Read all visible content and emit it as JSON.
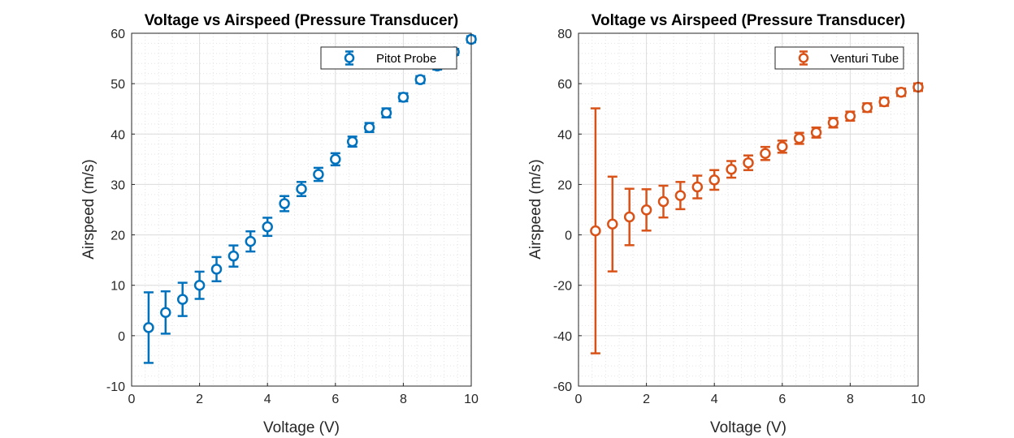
{
  "chart_data": [
    {
      "type": "scatter",
      "title": "Voltage vs Airspeed (Pressure Transducer)",
      "xlabel": "Voltage (V)",
      "ylabel": "Airspeed (m/s)",
      "xlim": [
        0,
        10
      ],
      "ylim": [
        -10,
        60
      ],
      "xticks": [
        0,
        2,
        4,
        6,
        8,
        10
      ],
      "yticks": [
        -10,
        0,
        10,
        20,
        30,
        40,
        50,
        60
      ],
      "grid": "on",
      "legend_position": "top-right",
      "series": [
        {
          "name": "Pitot Probe",
          "color": "#0072BD",
          "x": [
            0.5,
            1,
            1.5,
            2,
            2.5,
            3,
            3.5,
            4,
            4.5,
            5,
            5.5,
            6,
            6.5,
            7,
            7.5,
            8,
            8.5,
            9,
            9.5,
            10
          ],
          "y": [
            1.6,
            4.6,
            7.2,
            10.0,
            13.2,
            15.8,
            18.7,
            21.6,
            26.2,
            29.1,
            32.0,
            35.0,
            38.5,
            41.3,
            44.2,
            47.3,
            50.8,
            53.5,
            56.3,
            58.8
          ],
          "error": [
            7.0,
            4.2,
            3.3,
            2.7,
            2.4,
            2.1,
            2.0,
            1.8,
            1.5,
            1.4,
            1.3,
            1.2,
            1.0,
            0.9,
            0.9,
            0.8,
            0.7,
            0.7,
            0.6,
            0.6
          ]
        }
      ]
    },
    {
      "type": "scatter",
      "title": "Voltage vs Airspeed (Pressure Transducer)",
      "xlabel": "Voltage (V)",
      "ylabel": "Airspeed (m/s)",
      "xlim": [
        0,
        10
      ],
      "ylim": [
        -60,
        80
      ],
      "xticks": [
        0,
        2,
        4,
        6,
        8,
        10
      ],
      "yticks": [
        -60,
        -40,
        -20,
        0,
        20,
        40,
        60,
        80
      ],
      "grid": "on",
      "legend_position": "top-right",
      "series": [
        {
          "name": "Venturi Tube",
          "color": "#D95319",
          "x": [
            0.5,
            1,
            1.5,
            2,
            2.5,
            3,
            3.5,
            4,
            4.5,
            5,
            5.5,
            6,
            6.5,
            7,
            7.5,
            8,
            8.5,
            9,
            9.5,
            10
          ],
          "y": [
            1.6,
            4.3,
            7.1,
            9.9,
            13.2,
            15.6,
            19.0,
            21.8,
            26.0,
            28.6,
            32.3,
            35.0,
            38.3,
            40.6,
            44.5,
            47.1,
            50.5,
            52.8,
            56.6,
            58.6
          ],
          "error": [
            48.6,
            18.8,
            11.2,
            8.2,
            6.3,
            5.4,
            4.5,
            3.9,
            3.3,
            2.9,
            2.6,
            2.4,
            2.2,
            2.0,
            1.9,
            1.8,
            1.7,
            1.6,
            1.5,
            1.5
          ]
        }
      ]
    }
  ]
}
